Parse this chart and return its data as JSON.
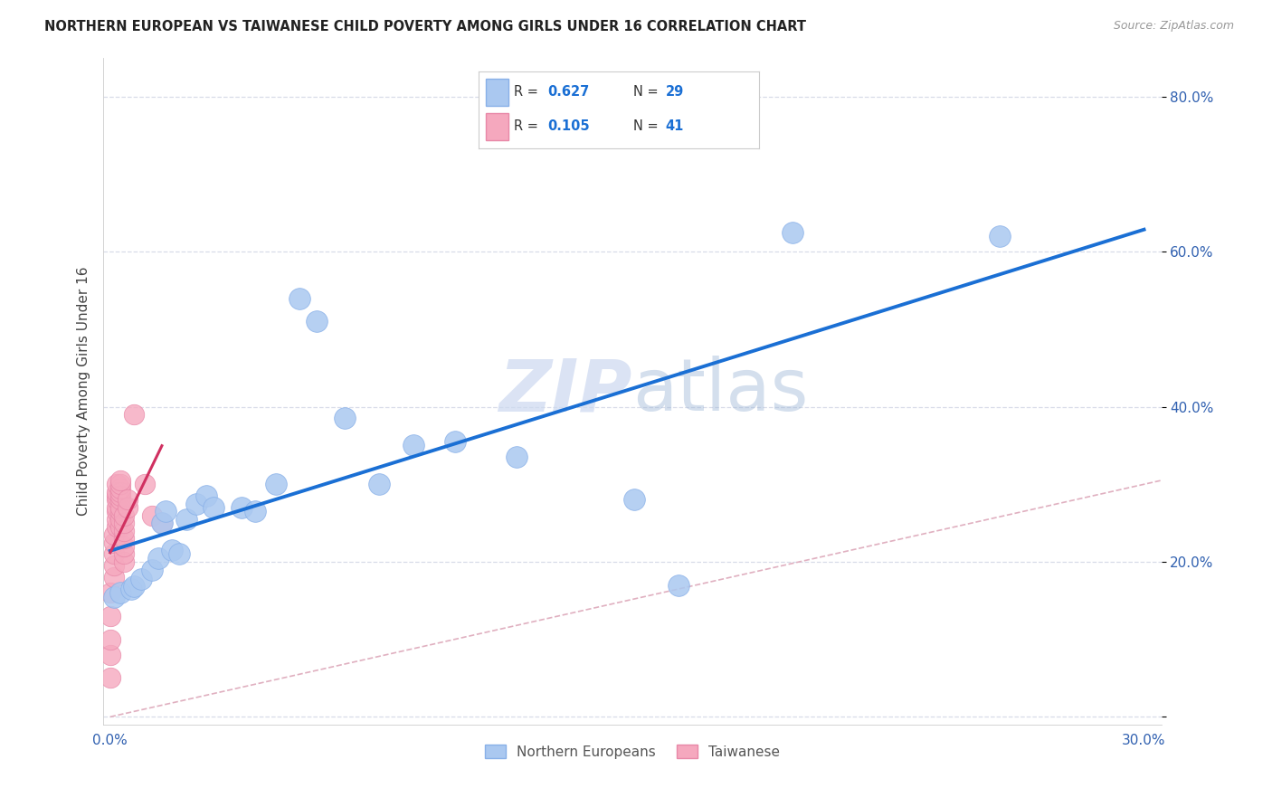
{
  "title": "NORTHERN EUROPEAN VS TAIWANESE CHILD POVERTY AMONG GIRLS UNDER 16 CORRELATION CHART",
  "source": "Source: ZipAtlas.com",
  "ylabel": "Child Poverty Among Girls Under 16",
  "xlim": [
    -0.002,
    0.305
  ],
  "ylim": [
    -0.01,
    0.85
  ],
  "xticks": [
    0.0,
    0.05,
    0.1,
    0.15,
    0.2,
    0.25,
    0.3
  ],
  "yticks": [
    0.0,
    0.2,
    0.4,
    0.6,
    0.8
  ],
  "blue_color": "#aac8f0",
  "blue_edge_color": "#88b0e8",
  "pink_color": "#f5a8be",
  "pink_edge_color": "#e888a8",
  "blue_line_color": "#1a6fd4",
  "pink_line_color": "#d03060",
  "diag_color": "#e0b0c0",
  "grid_color": "#d8dce8",
  "watermark_color": "#ccd8f0",
  "legend_label_blue": "Northern Europeans",
  "legend_label_pink": "Taiwanese",
  "northern_european_x": [
    0.001,
    0.003,
    0.006,
    0.007,
    0.009,
    0.012,
    0.014,
    0.015,
    0.016,
    0.018,
    0.02,
    0.022,
    0.025,
    0.028,
    0.03,
    0.038,
    0.042,
    0.048,
    0.055,
    0.06,
    0.068,
    0.078,
    0.088,
    0.1,
    0.118,
    0.152,
    0.165,
    0.198,
    0.258
  ],
  "northern_european_y": [
    0.155,
    0.16,
    0.165,
    0.168,
    0.178,
    0.19,
    0.205,
    0.25,
    0.265,
    0.215,
    0.21,
    0.255,
    0.275,
    0.285,
    0.27,
    0.27,
    0.265,
    0.3,
    0.54,
    0.51,
    0.385,
    0.3,
    0.35,
    0.355,
    0.335,
    0.28,
    0.17,
    0.625,
    0.62
  ],
  "taiwanese_x": [
    0.0,
    0.0,
    0.0,
    0.0,
    0.0,
    0.001,
    0.001,
    0.001,
    0.001,
    0.001,
    0.002,
    0.002,
    0.002,
    0.002,
    0.002,
    0.002,
    0.002,
    0.002,
    0.003,
    0.003,
    0.003,
    0.003,
    0.003,
    0.003,
    0.003,
    0.003,
    0.003,
    0.003,
    0.004,
    0.004,
    0.004,
    0.004,
    0.004,
    0.004,
    0.004,
    0.005,
    0.005,
    0.007,
    0.01,
    0.012,
    0.015
  ],
  "taiwanese_y": [
    0.05,
    0.08,
    0.1,
    0.13,
    0.16,
    0.18,
    0.195,
    0.21,
    0.225,
    0.235,
    0.245,
    0.255,
    0.265,
    0.27,
    0.28,
    0.285,
    0.29,
    0.3,
    0.245,
    0.255,
    0.265,
    0.27,
    0.28,
    0.285,
    0.29,
    0.295,
    0.3,
    0.305,
    0.2,
    0.21,
    0.22,
    0.23,
    0.24,
    0.25,
    0.26,
    0.27,
    0.28,
    0.39,
    0.3,
    0.26,
    0.25
  ]
}
